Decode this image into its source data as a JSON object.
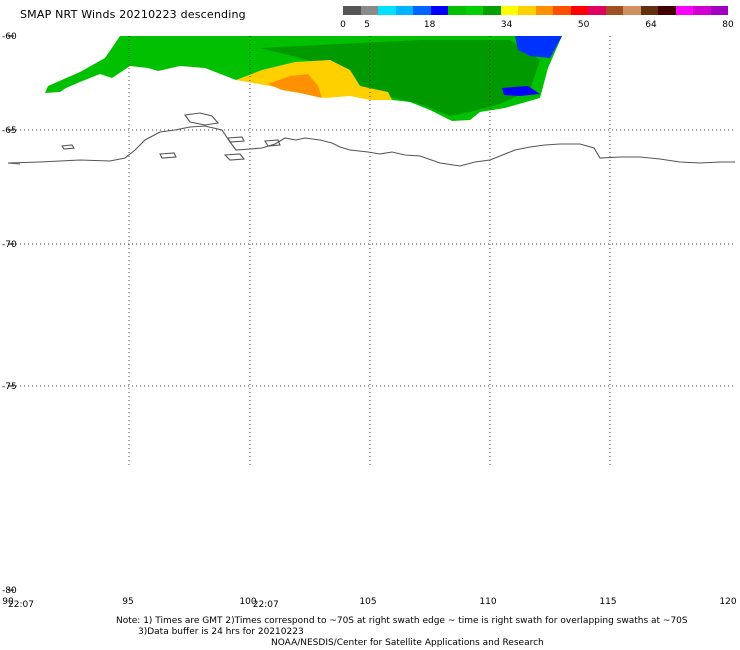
{
  "title": "SMAP NRT Winds  20210223  descending",
  "colorbar": {
    "segments": [
      "#555555",
      "#8a8a8a",
      "#00e0ff",
      "#00b4ff",
      "#0064ff",
      "#0000ff",
      "#00c000",
      "#00d000",
      "#00a000",
      "#ffff00",
      "#ffd000",
      "#ff9000",
      "#ff5000",
      "#ff0000",
      "#e00060",
      "#a05020",
      "#d09060",
      "#603010",
      "#400000",
      "#ff00ff",
      "#d000d0",
      "#a000c0"
    ],
    "labels": [
      {
        "text": "0",
        "pos": 0
      },
      {
        "text": "5",
        "pos": 5
      },
      {
        "text": "18",
        "pos": 18
      },
      {
        "text": "34",
        "pos": 34
      },
      {
        "text": "50",
        "pos": 50
      },
      {
        "text": "64",
        "pos": 64
      },
      {
        "text": "80",
        "pos": 80
      }
    ]
  },
  "map": {
    "lat_labels": [
      {
        "text": "-60",
        "lat": -60
      },
      {
        "text": "-65",
        "lat": -65
      },
      {
        "text": "-70",
        "lat": -70
      },
      {
        "text": "-75",
        "lat": -75
      },
      {
        "text": "-80",
        "lat": -80
      }
    ],
    "lon_labels": [
      {
        "text": "90",
        "lon": 90
      },
      {
        "text": "95",
        "lon": 95
      },
      {
        "text": "100",
        "lon": 100
      },
      {
        "text": "105",
        "lon": 105
      },
      {
        "text": "110",
        "lon": 110
      },
      {
        "text": "115",
        "lon": 115
      },
      {
        "text": "120",
        "lon": 120
      }
    ],
    "time_labels": [
      {
        "text": "22:07",
        "lon": 90.5
      },
      {
        "text": "22:07",
        "lon": 100.7
      }
    ]
  },
  "notes": {
    "line1": "Note: 1) Times are GMT 2)Times correspond to ~70S at right swath edge ~ time is right swath for overlapping swaths at ~70S",
    "line2": "3)Data buffer is 24 hrs for 20210223",
    "line3": "NOAA/NESDIS/Center for Satellite Applications and Research"
  }
}
